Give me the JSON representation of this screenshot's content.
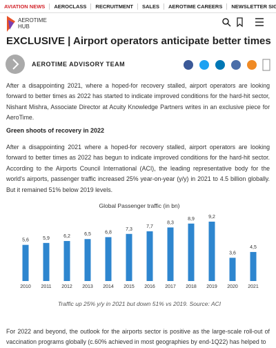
{
  "nav": {
    "items": [
      "AVIATION NEWS",
      "AEROCLASS",
      "RECRUITMENT",
      "SALES",
      "AEROTIME CAREERS",
      "NEWSLETTER SIGNUP"
    ]
  },
  "logo": {
    "line1": "AEROTIME",
    "line2": "HUB"
  },
  "article": {
    "title": "EXCLUSIVE | Airport operators anticipate better times",
    "author": "AEROTIME ADVISORY TEAM",
    "intro": "After a disappointing 2021, where a hoped-for recovery stalled, airport operators are looking forward to better times as 2022 has started to indicate improved conditions for the hard-hit sector, Nishant Mishra, Associate Director at Acuity Knowledge Partners writes in an exclusive piece for AeroTime.",
    "subheading": "Green shoots of recovery in 2022",
    "body": "After a disappointing 2021 where a hoped-for recovery stalled, airport operators are looking forward to better times as 2022 has begun to indicate improved conditions for the hard-hit sector. According to the Airports Council International (ACI), the leading representative body for the world's airports, passenger traffic increased 25% year-on-year (y/y) in 2021 to 4.5 billion globally. But it remained 51% below 2019 levels.",
    "caption": "Traffic up 25% y/y in 2021 but down 51% vs 2019. Source: ACI",
    "closing": "For 2022 and beyond, the outlook for the airports sector is positive as the large-scale roll-out of vaccination programs globally (c.60% achieved in most geographies by end-1Q22) has helped to"
  },
  "chart_data": {
    "type": "bar",
    "title": "Global Passenger traffic (in bn)",
    "categories": [
      "2010",
      "2011",
      "2012",
      "2013",
      "2014",
      "2015",
      "2016",
      "2017",
      "2018",
      "2019",
      "2020",
      "2021"
    ],
    "values": [
      5.6,
      5.9,
      6.2,
      6.5,
      6.8,
      7.3,
      7.7,
      8.3,
      8.9,
      9.2,
      3.6,
      4.5
    ],
    "value_labels": [
      "5,6",
      "5,9",
      "6,2",
      "6,5",
      "6,8",
      "7,3",
      "7,7",
      "8,3",
      "8,9",
      "9,2",
      "3,6",
      "4,5"
    ],
    "color": "#2e86cf"
  }
}
